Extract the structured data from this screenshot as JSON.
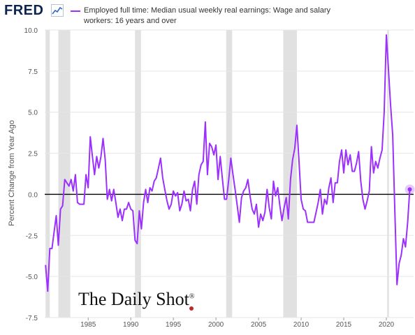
{
  "header": {
    "logo_text": "FRED",
    "logo_icon": "line-chart-icon",
    "legend_text": "Employed full time: Median usual weekly real earnings: Wage and salary workers: 16 years and over"
  },
  "watermark": {
    "text": "The Daily Shot",
    "registered": "®"
  },
  "colors": {
    "series": "#9b30ff",
    "recession": "#e1e1e1",
    "zero_line": "#000000",
    "grid": "#e6e6e6",
    "logo": "#0b2450",
    "watermark_dot": "#c0262c"
  },
  "chart_data": {
    "type": "line",
    "title": "",
    "xlabel": "",
    "ylabel": "Percent Change from Year Ago",
    "xlim": [
      1979.9,
      2023.2
    ],
    "ylim": [
      -7.5,
      10.0
    ],
    "yticks": [
      "10.0",
      "7.5",
      "5.0",
      "2.5",
      "0.0",
      "-2.5",
      "-5.0",
      "-7.5"
    ],
    "ytick_values": [
      10.0,
      7.5,
      5.0,
      2.5,
      0.0,
      -2.5,
      -5.0,
      -7.5
    ],
    "xticks": [
      "1985",
      "1990",
      "1995",
      "2000",
      "2005",
      "2010",
      "2015",
      "2020"
    ],
    "xtick_values": [
      1985,
      1990,
      1995,
      2000,
      2005,
      2010,
      2015,
      2020
    ],
    "grid": true,
    "zero_line": true,
    "recessions": [
      [
        1980.0,
        1980.5
      ],
      [
        1981.5,
        1982.9
      ],
      [
        1990.5,
        1991.2
      ],
      [
        2001.2,
        2001.9
      ],
      [
        2007.9,
        2009.5
      ],
      [
        2020.1,
        2020.3
      ]
    ],
    "series": [
      {
        "name": "Employed full time: Median usual weekly real earnings: Wage and salary workers: 16 years and over",
        "points": [
          [
            1980.0,
            -4.3
          ],
          [
            1980.25,
            -5.9
          ],
          [
            1980.5,
            -3.3
          ],
          [
            1980.75,
            -3.3
          ],
          [
            1981.0,
            -2.3
          ],
          [
            1981.25,
            -1.3
          ],
          [
            1981.5,
            -3.1
          ],
          [
            1981.75,
            -0.9
          ],
          [
            1982.0,
            -0.7
          ],
          [
            1982.25,
            0.9
          ],
          [
            1982.5,
            0.7
          ],
          [
            1982.75,
            0.5
          ],
          [
            1983.0,
            0.9
          ],
          [
            1983.25,
            0.2
          ],
          [
            1983.5,
            1.2
          ],
          [
            1983.75,
            -0.5
          ],
          [
            1984.0,
            -0.6
          ],
          [
            1984.25,
            -0.6
          ],
          [
            1984.5,
            -0.6
          ],
          [
            1984.75,
            1.2
          ],
          [
            1985.0,
            0.4
          ],
          [
            1985.25,
            3.5
          ],
          [
            1985.5,
            2.3
          ],
          [
            1985.75,
            1.2
          ],
          [
            1986.0,
            2.3
          ],
          [
            1986.25,
            1.6
          ],
          [
            1986.5,
            2.3
          ],
          [
            1986.75,
            3.4
          ],
          [
            1987.0,
            2.1
          ],
          [
            1987.25,
            -0.3
          ],
          [
            1987.5,
            0.3
          ],
          [
            1987.75,
            -0.4
          ],
          [
            1988.0,
            0.3
          ],
          [
            1988.25,
            -0.5
          ],
          [
            1988.5,
            -1.4
          ],
          [
            1988.75,
            -0.9
          ],
          [
            1989.0,
            -1.6
          ],
          [
            1989.25,
            -0.9
          ],
          [
            1989.5,
            -0.9
          ],
          [
            1989.75,
            -0.5
          ],
          [
            1990.0,
            -0.9
          ],
          [
            1990.25,
            -1.0
          ],
          [
            1990.5,
            -2.8
          ],
          [
            1990.75,
            -3.0
          ],
          [
            1991.0,
            -1.0
          ],
          [
            1991.25,
            -2.1
          ],
          [
            1991.5,
            -0.5
          ],
          [
            1991.75,
            0.3
          ],
          [
            1992.0,
            -0.5
          ],
          [
            1992.25,
            0.4
          ],
          [
            1992.5,
            0.2
          ],
          [
            1992.75,
            0.8
          ],
          [
            1993.0,
            1.0
          ],
          [
            1993.25,
            1.6
          ],
          [
            1993.5,
            2.2
          ],
          [
            1993.75,
            1.0
          ],
          [
            1994.0,
            0.3
          ],
          [
            1994.25,
            -0.4
          ],
          [
            1994.5,
            -0.9
          ],
          [
            1994.75,
            -0.6
          ],
          [
            1995.0,
            0.2
          ],
          [
            1995.25,
            -0.1
          ],
          [
            1995.5,
            0.1
          ],
          [
            1995.75,
            -1.0
          ],
          [
            1996.0,
            -0.6
          ],
          [
            1996.25,
            0.2
          ],
          [
            1996.5,
            -0.4
          ],
          [
            1996.75,
            -0.3
          ],
          [
            1997.0,
            -1.0
          ],
          [
            1997.25,
            0.3
          ],
          [
            1997.5,
            0.8
          ],
          [
            1997.75,
            -0.6
          ],
          [
            1998.0,
            1.2
          ],
          [
            1998.25,
            1.8
          ],
          [
            1998.5,
            2.0
          ],
          [
            1998.75,
            4.4
          ],
          [
            1999.0,
            1.2
          ],
          [
            1999.25,
            3.1
          ],
          [
            1999.5,
            2.9
          ],
          [
            1999.75,
            2.4
          ],
          [
            2000.0,
            3.0
          ],
          [
            2000.25,
            0.9
          ],
          [
            2000.5,
            2.3
          ],
          [
            2000.75,
            1.0
          ],
          [
            2001.0,
            -0.3
          ],
          [
            2001.25,
            -0.3
          ],
          [
            2001.5,
            0.9
          ],
          [
            2001.75,
            2.2
          ],
          [
            2002.0,
            1.2
          ],
          [
            2002.25,
            0.3
          ],
          [
            2002.5,
            -0.7
          ],
          [
            2002.75,
            -1.7
          ],
          [
            2003.0,
            -0.2
          ],
          [
            2003.25,
            0.2
          ],
          [
            2003.5,
            0.4
          ],
          [
            2003.75,
            0.9
          ],
          [
            2004.0,
            -0.1
          ],
          [
            2004.25,
            -0.9
          ],
          [
            2004.5,
            -1.2
          ],
          [
            2004.75,
            -0.6
          ],
          [
            2005.0,
            -2.0
          ],
          [
            2005.25,
            -1.2
          ],
          [
            2005.5,
            -1.6
          ],
          [
            2005.75,
            -1.1
          ],
          [
            2006.0,
            0.3
          ],
          [
            2006.25,
            -0.8
          ],
          [
            2006.5,
            -1.5
          ],
          [
            2006.75,
            0.8
          ],
          [
            2007.0,
            -0.1
          ],
          [
            2007.25,
            0.4
          ],
          [
            2007.5,
            -0.7
          ],
          [
            2007.75,
            -1.6
          ],
          [
            2008.0,
            -0.8
          ],
          [
            2008.25,
            -0.2
          ],
          [
            2008.5,
            -1.5
          ],
          [
            2008.75,
            0.9
          ],
          [
            2009.0,
            2.1
          ],
          [
            2009.25,
            2.8
          ],
          [
            2009.5,
            4.2
          ],
          [
            2009.75,
            2.0
          ],
          [
            2010.0,
            -0.3
          ],
          [
            2010.25,
            -0.9
          ],
          [
            2010.5,
            -1.0
          ],
          [
            2010.75,
            -1.7
          ],
          [
            2011.0,
            -1.7
          ],
          [
            2011.25,
            -1.7
          ],
          [
            2011.5,
            -1.7
          ],
          [
            2011.75,
            -1.1
          ],
          [
            2012.0,
            -0.5
          ],
          [
            2012.25,
            0.3
          ],
          [
            2012.5,
            -1.2
          ],
          [
            2012.75,
            -0.3
          ],
          [
            2013.0,
            -0.6
          ],
          [
            2013.25,
            0.4
          ],
          [
            2013.5,
            1.0
          ],
          [
            2013.75,
            -0.5
          ],
          [
            2014.0,
            0.7
          ],
          [
            2014.25,
            0.7
          ],
          [
            2014.5,
            2.0
          ],
          [
            2014.75,
            2.7
          ],
          [
            2015.0,
            1.3
          ],
          [
            2015.25,
            2.7
          ],
          [
            2015.5,
            1.8
          ],
          [
            2015.75,
            2.4
          ],
          [
            2016.0,
            1.4
          ],
          [
            2016.25,
            1.4
          ],
          [
            2016.5,
            1.9
          ],
          [
            2016.75,
            2.6
          ],
          [
            2017.0,
            0.8
          ],
          [
            2017.25,
            -0.3
          ],
          [
            2017.5,
            -0.9
          ],
          [
            2017.75,
            -0.4
          ],
          [
            2018.0,
            0.2
          ],
          [
            2018.25,
            2.9
          ],
          [
            2018.5,
            1.3
          ],
          [
            2018.75,
            2.0
          ],
          [
            2019.0,
            1.6
          ],
          [
            2019.25,
            2.2
          ],
          [
            2019.5,
            2.7
          ],
          [
            2019.75,
            5.0
          ],
          [
            2020.0,
            9.7
          ],
          [
            2020.25,
            7.6
          ],
          [
            2020.5,
            5.4
          ],
          [
            2020.75,
            3.6
          ],
          [
            2021.0,
            -1.1
          ],
          [
            2021.25,
            -5.5
          ],
          [
            2021.5,
            -4.2
          ],
          [
            2021.75,
            -3.7
          ],
          [
            2022.0,
            -2.7
          ],
          [
            2022.25,
            -3.2
          ],
          [
            2022.5,
            -1.7
          ],
          [
            2022.75,
            0.3
          ]
        ]
      }
    ]
  }
}
